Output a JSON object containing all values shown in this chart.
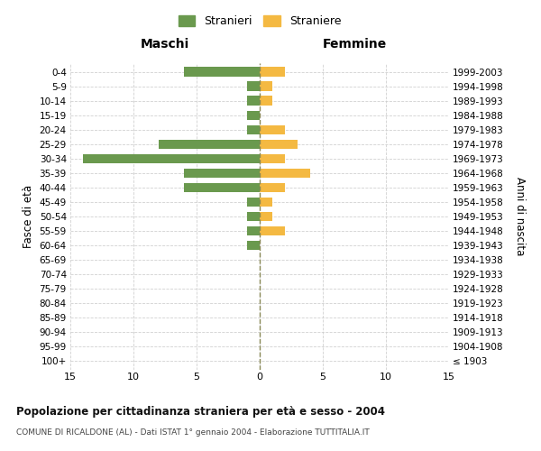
{
  "age_groups": [
    "100+",
    "95-99",
    "90-94",
    "85-89",
    "80-84",
    "75-79",
    "70-74",
    "65-69",
    "60-64",
    "55-59",
    "50-54",
    "45-49",
    "40-44",
    "35-39",
    "30-34",
    "25-29",
    "20-24",
    "15-19",
    "10-14",
    "5-9",
    "0-4"
  ],
  "birth_years": [
    "≤ 1903",
    "1904-1908",
    "1909-1913",
    "1914-1918",
    "1919-1923",
    "1924-1928",
    "1929-1933",
    "1934-1938",
    "1939-1943",
    "1944-1948",
    "1949-1953",
    "1954-1958",
    "1959-1963",
    "1964-1968",
    "1969-1973",
    "1974-1978",
    "1979-1983",
    "1984-1988",
    "1989-1993",
    "1994-1998",
    "1999-2003"
  ],
  "males": [
    0,
    0,
    0,
    0,
    0,
    0,
    0,
    0,
    1,
    1,
    1,
    1,
    6,
    6,
    14,
    8,
    1,
    1,
    1,
    1,
    6
  ],
  "females": [
    0,
    0,
    0,
    0,
    0,
    0,
    0,
    0,
    0,
    2,
    1,
    1,
    2,
    4,
    2,
    3,
    2,
    0,
    1,
    1,
    2
  ],
  "male_color": "#6a994e",
  "female_color": "#f4b942",
  "grid_color": "#cccccc",
  "center_line_color": "#888855",
  "xlim": 15,
  "title": "Popolazione per cittadinanza straniera per età e sesso - 2004",
  "subtitle": "COMUNE DI RICALDONE (AL) - Dati ISTAT 1° gennaio 2004 - Elaborazione TUTTITALIA.IT",
  "legend_stranieri": "Stranieri",
  "legend_straniere": "Straniere",
  "xlabel_left": "Maschi",
  "xlabel_right": "Femmine",
  "ylabel_left": "Fasce di età",
  "ylabel_right": "Anni di nascita",
  "bg_color": "#ffffff"
}
